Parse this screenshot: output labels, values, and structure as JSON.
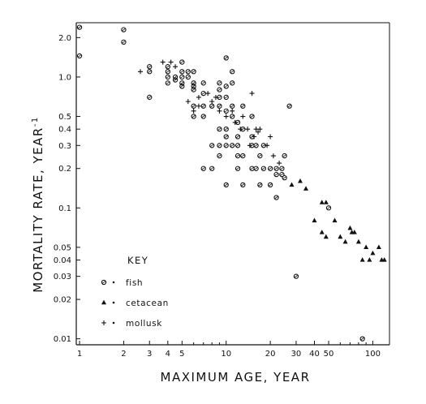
{
  "chart_data": {
    "type": "scatter",
    "title": "",
    "xlabel": "MAXIMUM AGE, YEAR",
    "ylabel": "MORTALITY RATE, YEAR",
    "ylabel_superscript": "-1",
    "x_scale": "log",
    "y_scale": "log",
    "xlim": [
      0.95,
      130
    ],
    "ylim": [
      0.009,
      2.6
    ],
    "grid": false,
    "legend_placement": "bottom-left",
    "x_ticks": [
      {
        "value": 1,
        "label": "1"
      },
      {
        "value": 2,
        "label": "2"
      },
      {
        "value": 3,
        "label": "3"
      },
      {
        "value": 4,
        "label": "4"
      },
      {
        "value": 5,
        "label": "5"
      },
      {
        "value": 10,
        "label": "10"
      },
      {
        "value": 20,
        "label": "20"
      },
      {
        "value": 30,
        "label": "30"
      },
      {
        "value": 40,
        "label": "40"
      },
      {
        "value": 50,
        "label": "50"
      },
      {
        "value": 100,
        "label": "100"
      }
    ],
    "x_minor_ticks": [
      6,
      7,
      8,
      9,
      60,
      70,
      80,
      90
    ],
    "y_ticks": [
      {
        "value": 0.01,
        "label": "0.01"
      },
      {
        "value": 0.02,
        "label": "0.02"
      },
      {
        "value": 0.03,
        "label": "0.03"
      },
      {
        "value": 0.04,
        "label": "0.04"
      },
      {
        "value": 0.05,
        "label": "0.05"
      },
      {
        "value": 0.1,
        "label": "0.1"
      },
      {
        "value": 0.2,
        "label": "0.2"
      },
      {
        "value": 0.3,
        "label": "0.3"
      },
      {
        "value": 0.4,
        "label": "0.4"
      },
      {
        "value": 0.5,
        "label": "0.5"
      },
      {
        "value": 1.0,
        "label": "1.0"
      },
      {
        "value": 2.0,
        "label": "2.0"
      }
    ],
    "key": {
      "title": "KEY",
      "entries": [
        {
          "series": "fish",
          "label": "fish"
        },
        {
          "series": "cetacean",
          "label": "cetacean"
        },
        {
          "series": "mollusk",
          "label": "mollusk"
        }
      ]
    },
    "series": [
      {
        "name": "fish",
        "marker": "circle",
        "points": [
          [
            1,
            2.4
          ],
          [
            1,
            1.45
          ],
          [
            2,
            2.3
          ],
          [
            2,
            1.85
          ],
          [
            3,
            1.2
          ],
          [
            3,
            1.1
          ],
          [
            3,
            0.7
          ],
          [
            4,
            1.2
          ],
          [
            4,
            1.1
          ],
          [
            4,
            1.0
          ],
          [
            4,
            0.9
          ],
          [
            4.5,
            1.0
          ],
          [
            4.5,
            0.95
          ],
          [
            5,
            1.3
          ],
          [
            5,
            1.1
          ],
          [
            5,
            1.0
          ],
          [
            5,
            0.9
          ],
          [
            5,
            0.85
          ],
          [
            5.5,
            1.1
          ],
          [
            5.5,
            1.0
          ],
          [
            6,
            1.1
          ],
          [
            6,
            0.9
          ],
          [
            6,
            0.85
          ],
          [
            6,
            0.8
          ],
          [
            6,
            0.6
          ],
          [
            6,
            0.5
          ],
          [
            7,
            0.9
          ],
          [
            7,
            0.75
          ],
          [
            7,
            0.6
          ],
          [
            7,
            0.5
          ],
          [
            7,
            0.2
          ],
          [
            8,
            0.6
          ],
          [
            8,
            0.3
          ],
          [
            8,
            0.2
          ],
          [
            9,
            0.9
          ],
          [
            9,
            0.8
          ],
          [
            9,
            0.7
          ],
          [
            9,
            0.6
          ],
          [
            9,
            0.4
          ],
          [
            9,
            0.3
          ],
          [
            9,
            0.25
          ],
          [
            10,
            1.4
          ],
          [
            10,
            0.85
          ],
          [
            10,
            0.7
          ],
          [
            10,
            0.55
          ],
          [
            10,
            0.4
          ],
          [
            10,
            0.35
          ],
          [
            10,
            0.3
          ],
          [
            10,
            0.15
          ],
          [
            11,
            1.1
          ],
          [
            11,
            0.9
          ],
          [
            11,
            0.6
          ],
          [
            11,
            0.5
          ],
          [
            11,
            0.3
          ],
          [
            12,
            0.45
          ],
          [
            12,
            0.35
          ],
          [
            12,
            0.3
          ],
          [
            12,
            0.25
          ],
          [
            12,
            0.2
          ],
          [
            13,
            0.6
          ],
          [
            13,
            0.4
          ],
          [
            13,
            0.25
          ],
          [
            13,
            0.15
          ],
          [
            15,
            0.5
          ],
          [
            15,
            0.35
          ],
          [
            15,
            0.3
          ],
          [
            15,
            0.2
          ],
          [
            16,
            0.3
          ],
          [
            16,
            0.2
          ],
          [
            17,
            0.25
          ],
          [
            17,
            0.15
          ],
          [
            18,
            0.3
          ],
          [
            18,
            0.2
          ],
          [
            20,
            0.2
          ],
          [
            20,
            0.15
          ],
          [
            22,
            0.2
          ],
          [
            22,
            0.18
          ],
          [
            22,
            0.12
          ],
          [
            24,
            0.2
          ],
          [
            24,
            0.18
          ],
          [
            25,
            0.25
          ],
          [
            25,
            0.17
          ],
          [
            27,
            0.6
          ],
          [
            30,
            0.03
          ],
          [
            50,
            0.1
          ],
          [
            85,
            0.01
          ]
        ]
      },
      {
        "name": "cetacean",
        "marker": "triangle",
        "points": [
          [
            28,
            0.15
          ],
          [
            32,
            0.16
          ],
          [
            35,
            0.14
          ],
          [
            40,
            0.08
          ],
          [
            45,
            0.11
          ],
          [
            48,
            0.11
          ],
          [
            45,
            0.065
          ],
          [
            48,
            0.06
          ],
          [
            55,
            0.08
          ],
          [
            60,
            0.06
          ],
          [
            65,
            0.055
          ],
          [
            70,
            0.07
          ],
          [
            72,
            0.065
          ],
          [
            75,
            0.065
          ],
          [
            80,
            0.055
          ],
          [
            85,
            0.04
          ],
          [
            90,
            0.05
          ],
          [
            95,
            0.04
          ],
          [
            100,
            0.045
          ],
          [
            110,
            0.05
          ],
          [
            115,
            0.04
          ],
          [
            120,
            0.04
          ]
        ]
      },
      {
        "name": "mollusk",
        "marker": "plus",
        "points": [
          [
            2.6,
            1.1
          ],
          [
            3.7,
            1.3
          ],
          [
            4.2,
            1.3
          ],
          [
            4.5,
            1.2
          ],
          [
            5.5,
            0.65
          ],
          [
            6.5,
            0.7
          ],
          [
            7.5,
            0.75
          ],
          [
            6,
            0.55
          ],
          [
            6.5,
            0.6
          ],
          [
            8,
            0.65
          ],
          [
            8.5,
            0.7
          ],
          [
            9,
            0.55
          ],
          [
            10,
            0.5
          ],
          [
            11,
            0.55
          ],
          [
            11.5,
            0.45
          ],
          [
            12.5,
            0.4
          ],
          [
            13,
            0.5
          ],
          [
            14,
            0.4
          ],
          [
            15,
            0.75
          ],
          [
            14.5,
            0.3
          ],
          [
            15.5,
            0.35
          ],
          [
            16,
            0.4
          ],
          [
            16.5,
            0.38
          ],
          [
            17,
            0.4
          ],
          [
            19,
            0.3
          ],
          [
            20,
            0.35
          ],
          [
            21,
            0.25
          ],
          [
            23,
            0.22
          ]
        ]
      }
    ]
  }
}
